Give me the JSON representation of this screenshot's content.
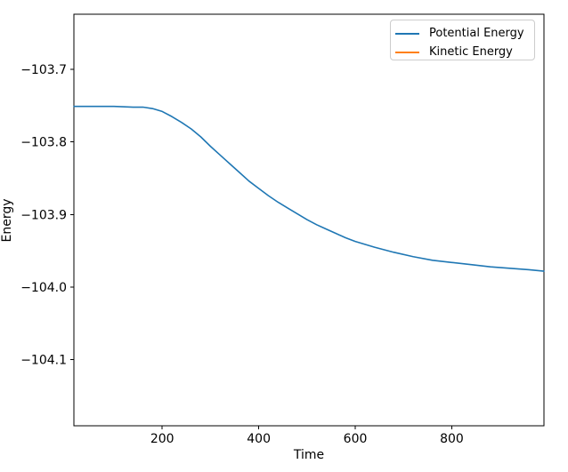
{
  "chart_data": {
    "type": "line",
    "title": "",
    "xlabel": "Time",
    "ylabel": "Energy",
    "xlim": [
      17,
      991
    ],
    "ylim": [
      -104.191,
      -103.624
    ],
    "xticks": [
      200,
      400,
      600,
      800
    ],
    "xtick_labels": [
      "200",
      "400",
      "600",
      "800"
    ],
    "yticks": [
      -103.7,
      -103.8,
      -103.9,
      -104.0,
      -104.1
    ],
    "ytick_labels": [
      "−103.7",
      "−103.8",
      "−103.9",
      "−104.0",
      "−104.1"
    ],
    "grid": false,
    "background_color": "#ffffff",
    "spine_color": "#000000",
    "legend": {
      "position": "upper right",
      "border_color": "#cccccc"
    },
    "series": [
      {
        "name": "Potential Energy",
        "color": "#1f77b4",
        "visible_in_plot": true,
        "points": [
          [
            17,
            -103.751
          ],
          [
            60,
            -103.751
          ],
          [
            100,
            -103.751
          ],
          [
            140,
            -103.752
          ],
          [
            160,
            -103.752
          ],
          [
            180,
            -103.754
          ],
          [
            200,
            -103.758
          ],
          [
            220,
            -103.765
          ],
          [
            240,
            -103.773
          ],
          [
            260,
            -103.782
          ],
          [
            280,
            -103.793
          ],
          [
            300,
            -103.806
          ],
          [
            320,
            -103.818
          ],
          [
            340,
            -103.83
          ],
          [
            360,
            -103.842
          ],
          [
            380,
            -103.854
          ],
          [
            400,
            -103.864
          ],
          [
            420,
            -103.874
          ],
          [
            440,
            -103.883
          ],
          [
            460,
            -103.891
          ],
          [
            480,
            -103.899
          ],
          [
            500,
            -103.907
          ],
          [
            520,
            -103.914
          ],
          [
            540,
            -103.92
          ],
          [
            560,
            -103.926
          ],
          [
            580,
            -103.932
          ],
          [
            600,
            -103.937
          ],
          [
            640,
            -103.945
          ],
          [
            680,
            -103.952
          ],
          [
            720,
            -103.958
          ],
          [
            760,
            -103.963
          ],
          [
            800,
            -103.966
          ],
          [
            840,
            -103.969
          ],
          [
            880,
            -103.972
          ],
          [
            920,
            -103.974
          ],
          [
            960,
            -103.976
          ],
          [
            991,
            -103.978
          ]
        ]
      },
      {
        "name": "Kinetic Energy",
        "color": "#ff7f0e",
        "visible_in_plot": false,
        "points": []
      }
    ]
  }
}
